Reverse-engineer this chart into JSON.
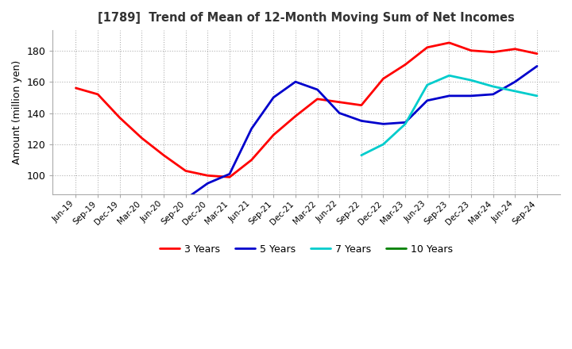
{
  "title": "[1789]  Trend of Mean of 12-Month Moving Sum of Net Incomes",
  "ylabel": "Amount (million yen)",
  "ylim": [
    88,
    193
  ],
  "yticks": [
    100,
    120,
    140,
    160,
    180
  ],
  "background_color": "#ffffff",
  "grid_color": "#aaaaaa",
  "x_labels": [
    "Jun-19",
    "Sep-19",
    "Dec-19",
    "Mar-20",
    "Jun-20",
    "Sep-20",
    "Dec-20",
    "Mar-21",
    "Jun-21",
    "Sep-21",
    "Dec-21",
    "Mar-22",
    "Jun-22",
    "Sep-22",
    "Dec-22",
    "Mar-23",
    "Jun-23",
    "Sep-23",
    "Dec-23",
    "Mar-24",
    "Jun-24",
    "Sep-24"
  ],
  "series": {
    "3 Years": {
      "color": "#ff0000",
      "data": [
        156,
        152,
        137,
        124,
        113,
        103,
        100,
        99,
        110,
        126,
        138,
        149,
        147,
        145,
        162,
        171,
        182,
        185,
        180,
        179,
        181,
        178
      ]
    },
    "5 Years": {
      "color": "#0000cc",
      "data": [
        null,
        null,
        null,
        null,
        null,
        85,
        95,
        101,
        130,
        150,
        160,
        155,
        140,
        135,
        133,
        134,
        148,
        151,
        151,
        152,
        160,
        170
      ]
    },
    "7 Years": {
      "color": "#00cccc",
      "data": [
        null,
        null,
        null,
        null,
        null,
        null,
        null,
        null,
        null,
        null,
        null,
        null,
        null,
        113,
        120,
        133,
        158,
        164,
        161,
        157,
        154,
        151
      ]
    },
    "10 Years": {
      "color": "#008000",
      "data": [
        null,
        null,
        null,
        null,
        null,
        null,
        null,
        null,
        null,
        null,
        null,
        null,
        null,
        null,
        null,
        null,
        null,
        null,
        null,
        null,
        null,
        null
      ]
    }
  },
  "legend_order": [
    "3 Years",
    "5 Years",
    "7 Years",
    "10 Years"
  ]
}
